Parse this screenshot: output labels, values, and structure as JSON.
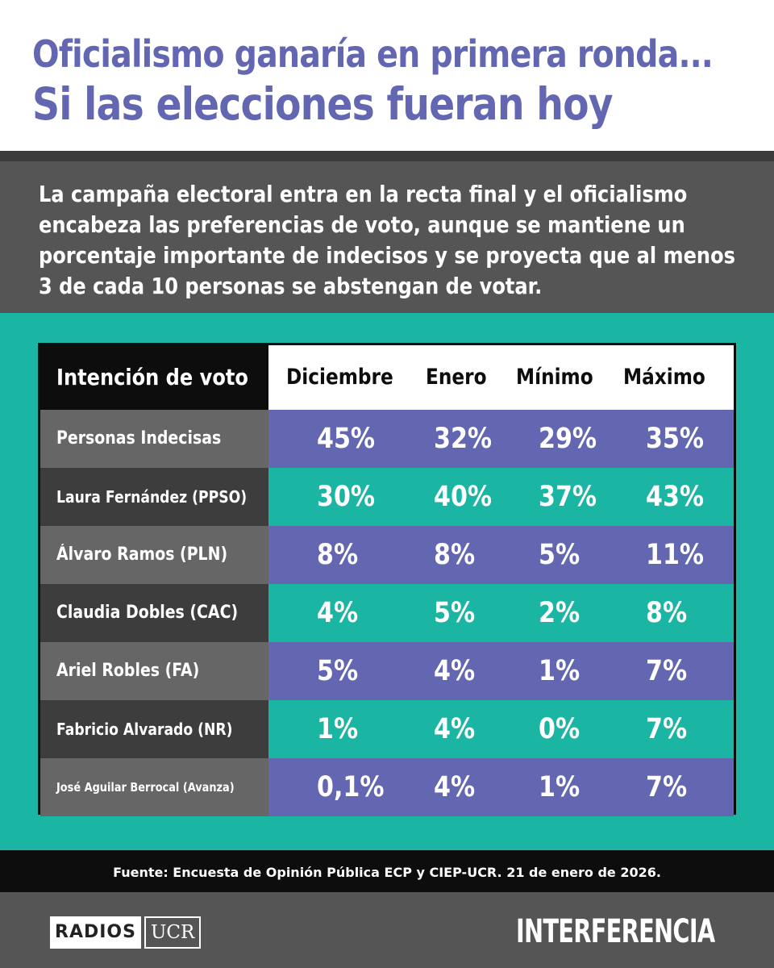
{
  "title": {
    "line1": "Oficialismo ganaría en primera ronda...",
    "line2": "Si las elecciones fueran hoy"
  },
  "lead": "La campaña electoral entra en la recta final y el oficialismo encabeza las preferencias de voto, aunque se mantiene un porcentaje importante de indecisos y se proyecta que al menos 3 de cada 10 personas se abstengan de votar.",
  "colors": {
    "purple": "#6366b0",
    "teal": "#1bb5a4",
    "label_light": "#666666",
    "label_dark": "#3d3d3d"
  },
  "chart_data": {
    "type": "table",
    "header_label": "Intención de voto",
    "columns": [
      "Diciembre",
      "Enero",
      "Mínimo",
      "Máximo"
    ],
    "rows": [
      {
        "label": "Personas Indecisas",
        "values": [
          "45%",
          "32%",
          "29%",
          "35%"
        ]
      },
      {
        "label": "Laura Fernández (PPSO)",
        "values": [
          "30%",
          "40%",
          "37%",
          "43%"
        ]
      },
      {
        "label": "Álvaro Ramos (PLN)",
        "values": [
          "8%",
          "8%",
          "5%",
          "11%"
        ]
      },
      {
        "label": "Claudia Dobles (CAC)",
        "values": [
          "4%",
          "5%",
          "2%",
          "8%"
        ]
      },
      {
        "label": "Ariel Robles (FA)",
        "values": [
          "5%",
          "4%",
          "1%",
          "7%"
        ]
      },
      {
        "label": "Fabricio Alvarado (NR)",
        "values": [
          "1%",
          "4%",
          "0%",
          "7%"
        ]
      },
      {
        "label": "José Aguilar Berrocal (Avanza)",
        "values": [
          "0,1%",
          "4%",
          "1%",
          "7%"
        ]
      }
    ]
  },
  "source": "Fuente: Encuesta de Opinión Pública ECP y CIEP-UCR. 21 de enero de 2026.",
  "footer": {
    "logo_left_a": "RADIOS",
    "logo_left_b": "UCR",
    "logo_right": "INTERFERENCIA"
  }
}
